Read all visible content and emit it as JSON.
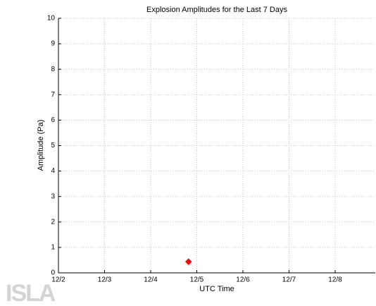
{
  "chart_data": {
    "type": "scatter",
    "title": "Explosion Amplitudes for the Last 7 Days",
    "xlabel": "UTC Time",
    "ylabel": "Amplitude (Pa)",
    "x": [
      4.82
    ],
    "values": [
      0.44
    ],
    "color": "#ff0000",
    "marker": "diamond",
    "xlim": [
      2,
      8.87
    ],
    "xticks": [
      {
        "value": 2,
        "label": "12/2"
      },
      {
        "value": 3,
        "label": "12/3"
      },
      {
        "value": 4,
        "label": "12/4"
      },
      {
        "value": 5,
        "label": "12/5"
      },
      {
        "value": 6,
        "label": "12/6"
      },
      {
        "value": 7,
        "label": "12/7"
      },
      {
        "value": 8,
        "label": "12/8"
      }
    ],
    "ylim": [
      0,
      10
    ],
    "yticks": [
      0,
      1,
      2,
      3,
      4,
      5,
      6,
      7,
      8,
      9,
      10
    ],
    "grid": true
  },
  "watermark": "ISLA"
}
